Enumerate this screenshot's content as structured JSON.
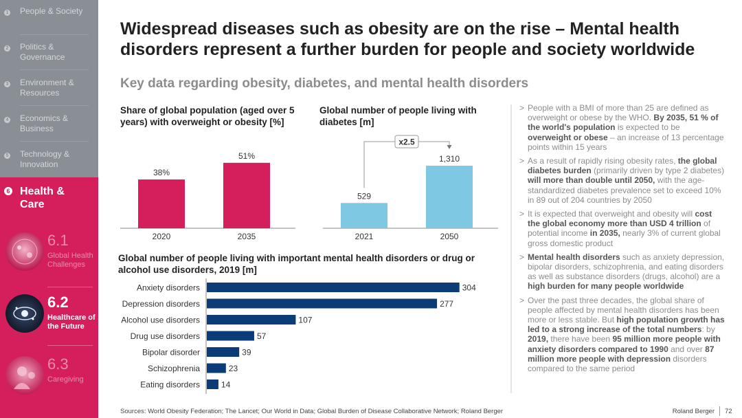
{
  "sidebar": {
    "items": [
      {
        "num": "1",
        "label": "People & Society"
      },
      {
        "num": "2",
        "label": "Politics & Governance"
      },
      {
        "num": "3",
        "label": "Environment & Resources"
      },
      {
        "num": "4",
        "label": "Economics & Business"
      },
      {
        "num": "5",
        "label": "Technology & Innovation"
      }
    ],
    "active": {
      "num": "6",
      "label": "Health & Care"
    },
    "subitems": [
      {
        "num": "6.1",
        "title": "Global Health Challenges"
      },
      {
        "num": "6.2",
        "title": "Healthcare of the Future"
      },
      {
        "num": "6.3",
        "title": "Caregiving"
      }
    ]
  },
  "header": {
    "title": "Widespread diseases such as obesity are on the rise – Mental health disorders represent a further burden for people and society worldwide",
    "subtitle": "Key data regarding obesity, diabetes, and mental health disorders"
  },
  "chart_data": [
    {
      "type": "bar",
      "title": "Share of global population (aged over 5 years) with overweight or obesity [%]",
      "categories": [
        "2020",
        "2035"
      ],
      "values": [
        38,
        51
      ],
      "value_labels": [
        "38%",
        "51%"
      ],
      "ylim": [
        0,
        60
      ],
      "color": "#d51f5d"
    },
    {
      "type": "bar",
      "title": "Global number of people living with diabetes [m]",
      "categories": [
        "2021",
        "2050"
      ],
      "values": [
        529,
        1310
      ],
      "value_labels": [
        "529",
        "1,310"
      ],
      "annotation": "x2.5",
      "ylim": [
        0,
        1500
      ],
      "color": "#7ec8e3"
    },
    {
      "type": "bar",
      "orientation": "horizontal",
      "title": "Global number of people living with important mental health disorders or drug or alcohol use disorders, 2019 [m]",
      "categories": [
        "Anxiety disorders",
        "Depression disorders",
        "Alcohol use disorders",
        "Drug use disorders",
        "Bipolar disorder",
        "Schizophrenia",
        "Eating disorders"
      ],
      "values": [
        304,
        277,
        107,
        57,
        39,
        23,
        14
      ],
      "value_labels": [
        "304",
        "277",
        "107",
        "57",
        "39",
        "23",
        "14"
      ],
      "xlim": [
        0,
        310
      ],
      "color": "#0b3c78"
    }
  ],
  "bullets": [
    {
      "segments": [
        {
          "t": "People with a BMI of more than 25 are defined as overweight or obese by the WHO. "
        },
        {
          "t": "By 2035, 51 % of the world's population",
          "b": true
        },
        {
          "t": " is expected to be "
        },
        {
          "t": "overweight or obese",
          "b": true
        },
        {
          "t": " – an increase of 13 percentage points within 15 years"
        }
      ]
    },
    {
      "segments": [
        {
          "t": "As a result of rapidly rising obesity rates, "
        },
        {
          "t": "the global diabetes burden",
          "b": true
        },
        {
          "t": " (primarily driven by type 2 diabetes) "
        },
        {
          "t": "will more than double until 2050,",
          "b": true
        },
        {
          "t": " with the age-standardized diabetes prevalence set to exceed 10% in 89 out of 204 countries by 2050"
        }
      ]
    },
    {
      "segments": [
        {
          "t": "It is expected that overweight and obesity will "
        },
        {
          "t": "cost the global economy more than USD 4 trillion",
          "b": true
        },
        {
          "t": " of potential income "
        },
        {
          "t": "in 2035,",
          "b": true
        },
        {
          "t": " nearly 3% of current global gross domestic product"
        }
      ]
    },
    {
      "segments": [
        {
          "t": "Mental health disorders",
          "b": true
        },
        {
          "t": " such as anxiety depression, bipolar disorders, schizophrenia, and eating disorders as well as substance disorders (drugs, alcohol) are a "
        },
        {
          "t": "high burden for many people worldwide",
          "b": true
        }
      ]
    },
    {
      "segments": [
        {
          "t": "Over the past three decades, the global share of people affected by mental health disorders has been more or less stable. But "
        },
        {
          "t": "high population growth has led to a strong increase of the total numbers",
          "b": true
        },
        {
          "t": ": by "
        },
        {
          "t": "2019,",
          "b": true
        },
        {
          "t": " there have been "
        },
        {
          "t": "95 million more people with anxiety disorders compared to 1990",
          "b": true
        },
        {
          "t": " and over "
        },
        {
          "t": "87 million more people with depression",
          "b": true
        },
        {
          "t": " disorders compared to the same period"
        }
      ]
    }
  ],
  "footer": {
    "sources": "Sources: World Obesity Federation; The Lancet; Our World in Data; Global Burden of Disease Collaborative Network; Roland Berger",
    "brand": "Roland Berger",
    "page": "72"
  },
  "colors": {
    "accent": "#d51f5d",
    "sidebar": "#8a8f96",
    "navy": "#0b3c78",
    "lightblue": "#7ec8e3"
  }
}
